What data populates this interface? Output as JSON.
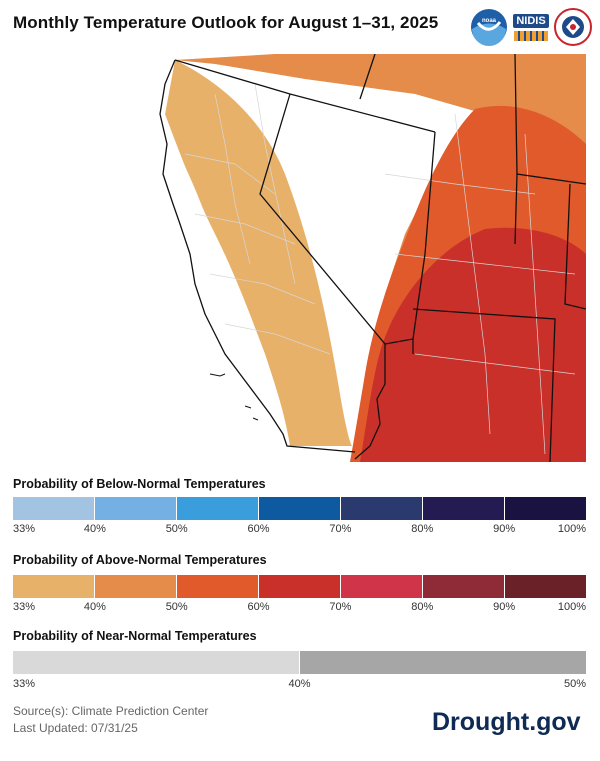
{
  "title": "Monthly Temperature Outlook for August 1–31, 2025",
  "logos": {
    "noaa": "noaa-logo",
    "nidis_text": "NIDIS",
    "nws": "nws-logo"
  },
  "map": {
    "colors": {
      "above_33_40": "#e8b16a",
      "above_40_50": "#e58c4a",
      "above_50_60": "#e05a2b",
      "above_60_70": "#c9302a",
      "background": "#ffffff",
      "borders": "#111111",
      "counties": "#d9d9d9"
    }
  },
  "below_legend": {
    "title": "Probability of Below-Normal Temperatures",
    "colors": [
      "#a3c3e3",
      "#74b0e3",
      "#3a9ddc",
      "#0d5aa0",
      "#2a3a6e",
      "#231b52",
      "#1a1240"
    ],
    "ticks": [
      "33%",
      "40%",
      "50%",
      "60%",
      "70%",
      "80%",
      "90%",
      "100%"
    ]
  },
  "above_legend": {
    "title": "Probability of Above-Normal Temperatures",
    "colors": [
      "#e8b16a",
      "#e58c4a",
      "#e05a2b",
      "#c9302a",
      "#cf3449",
      "#8f2b37",
      "#6b2128"
    ],
    "ticks": [
      "33%",
      "40%",
      "50%",
      "60%",
      "70%",
      "80%",
      "90%",
      "100%"
    ]
  },
  "near_legend": {
    "title": "Probability of Near-Normal Temperatures",
    "colors": [
      "#d9d9d9",
      "#a6a6a6"
    ],
    "ticks": [
      "33%",
      "40%",
      "50%"
    ]
  },
  "footer": {
    "source": "Source(s): Climate Prediction Center",
    "updated": "Last Updated: 07/31/25",
    "brand": "Drought.gov"
  }
}
